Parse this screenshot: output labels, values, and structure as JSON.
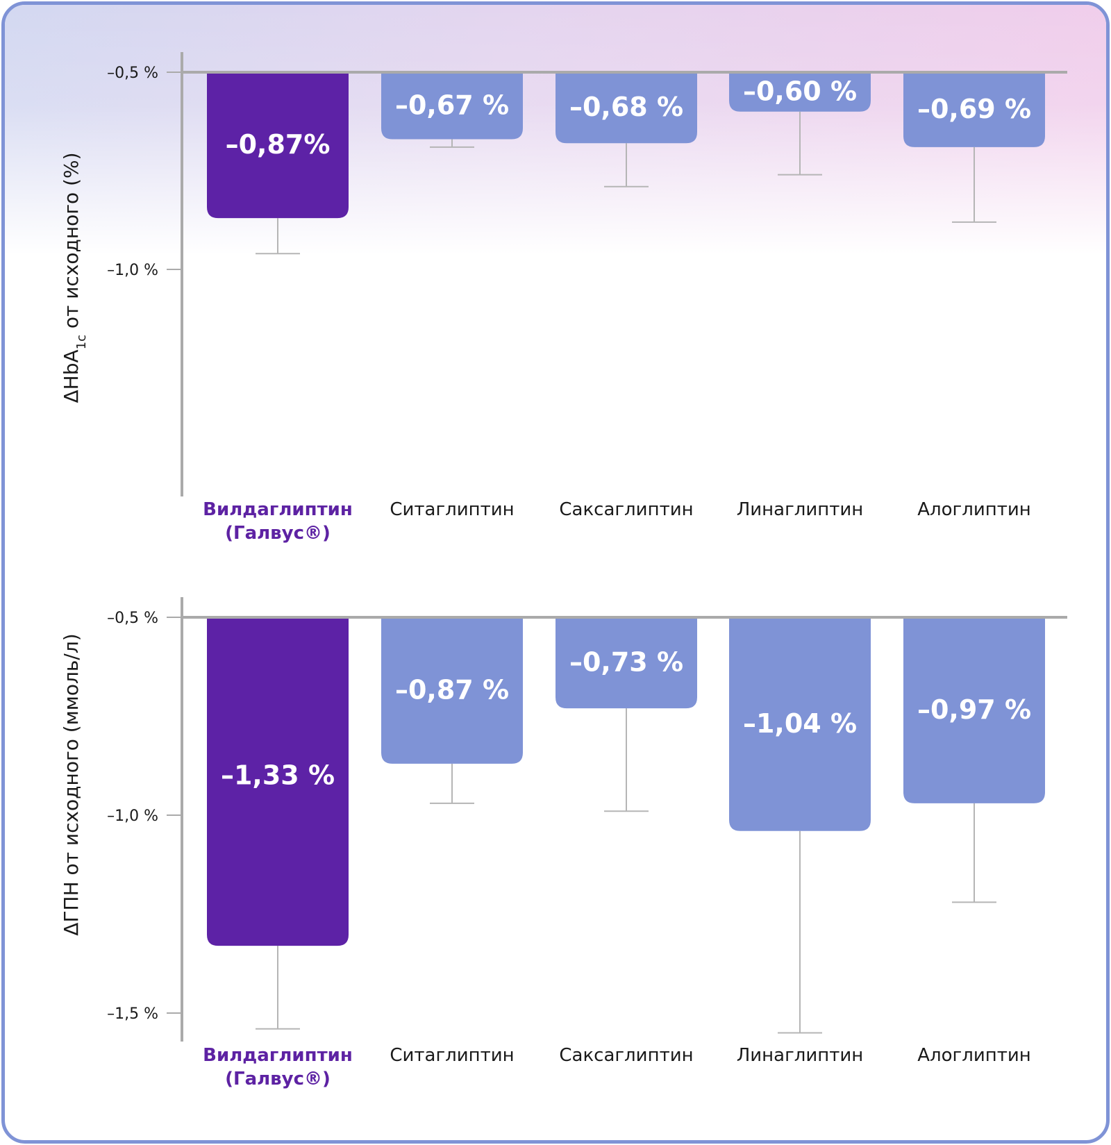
{
  "colors": {
    "highlight_bar": "#5d22a6",
    "other_bar": "#7f93d6",
    "axis": "#aaaaaa",
    "error_bar": "#b5b5b5",
    "highlight_text": "#5d22a3",
    "frame_border": "#7f93d6"
  },
  "chart_data": [
    {
      "type": "bar",
      "id": "hba1c",
      "title": "",
      "ylabel": "ΔHbA1c от исходного (%)",
      "ylabel_main": "ΔHbA",
      "ylabel_sub": "1c",
      "ylabel_rest": " от исходного (%)",
      "xlabel": "",
      "ylim": [
        -0.5,
        -1.0
      ],
      "yticks": [
        -0.5,
        -1.0
      ],
      "ytick_labels": [
        "–0,5 %",
        "–1,0 %"
      ],
      "grid": false,
      "categories": [
        "Вилдаглиптин (Галвус®)",
        "Ситаглиптин",
        "Саксаглиптин",
        "Линаглиптин",
        "Алоглиптин"
      ],
      "category_lines": [
        [
          "Вилдаглиптин",
          "(Галвус®)"
        ],
        [
          "Ситаглиптин"
        ],
        [
          "Саксаглиптин"
        ],
        [
          "Линаглиптин"
        ],
        [
          "Алоглиптин"
        ]
      ],
      "highlight_index": 0,
      "values": [
        -0.87,
        -0.67,
        -0.68,
        -0.6,
        -0.69
      ],
      "value_labels": [
        "–0,87%",
        "–0,67 %",
        "–0,68 %",
        "–0,60 %",
        "–0,69 %"
      ],
      "error_lower": [
        -0.96,
        -0.69,
        -0.79,
        -0.76,
        -0.88
      ]
    },
    {
      "type": "bar",
      "id": "fpg",
      "title": "",
      "ylabel": "ΔГПН от исходного (ммоль/л)",
      "ylabel_main": "ΔГПН от исходного (ммоль/л)",
      "ylabel_sub": "",
      "ylabel_rest": "",
      "xlabel": "",
      "ylim": [
        -0.5,
        -1.5
      ],
      "yticks": [
        -0.5,
        -1.0,
        -1.5
      ],
      "ytick_labels": [
        "–0,5 %",
        "–1,0 %",
        "–1,5 %"
      ],
      "grid": false,
      "categories": [
        "Вилдаглиптин (Галвус®)",
        "Ситаглиптин",
        "Саксаглиптин",
        "Линаглиптин",
        "Алоглиптин"
      ],
      "category_lines": [
        [
          "Вилдаглиптин",
          "(Галвус®)"
        ],
        [
          "Ситаглиптин"
        ],
        [
          "Саксаглиптин"
        ],
        [
          "Линаглиптин"
        ],
        [
          "Алоглиптин"
        ]
      ],
      "highlight_index": 0,
      "values": [
        -1.33,
        -0.87,
        -0.73,
        -1.04,
        -0.97
      ],
      "value_labels": [
        "–1,33 %",
        "–0,87 %",
        "–0,73 %",
        "–1,04 %",
        "–0,97 %"
      ],
      "error_lower": [
        -1.54,
        -0.97,
        -0.99,
        -1.55,
        -1.22
      ]
    }
  ]
}
